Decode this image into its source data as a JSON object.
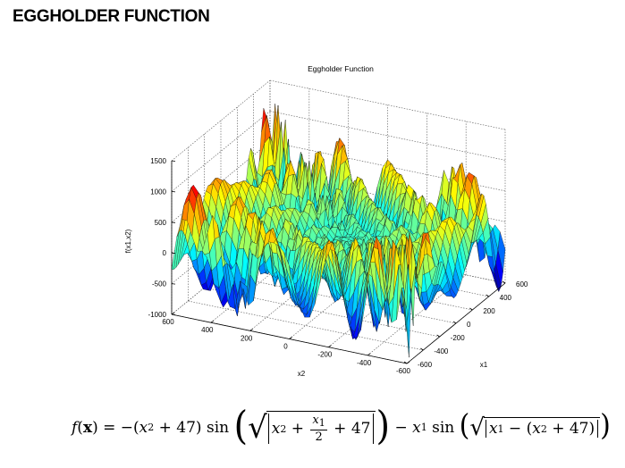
{
  "page": {
    "title": "EGGHOLDER FUNCTION"
  },
  "chart_data": {
    "type": "surface3d",
    "title": "Eggholder Function",
    "xlabel": "x1",
    "ylabel": "x2",
    "zlabel": "f(x1,x2)",
    "xlim": [
      -600,
      600
    ],
    "ylim": [
      -600,
      600
    ],
    "zlim": [
      -1000,
      1500
    ],
    "x_ticks": [
      "-600",
      "-400",
      "-200",
      "0",
      "200",
      "400",
      "600"
    ],
    "y_ticks": [
      "600",
      "400",
      "200",
      "0",
      "-200",
      "-400",
      "-600"
    ],
    "z_ticks": [
      "1500",
      "1000",
      "500",
      "0",
      "-500",
      "-1000"
    ],
    "grid": true,
    "colormap": "jet"
  },
  "formula": {
    "f": "f",
    "x": "x",
    "eq": "= −(",
    "x2a": "x",
    "sub2": "2",
    "plus47a": " + 47) sin ",
    "plus47b": " + 47",
    "x2b": "x",
    "plus": " + ",
    "fracnum": "x",
    "sub1": "1",
    "fracden": "2",
    "minus": " − ",
    "x1a": "x",
    "sin2": " sin ",
    "x1b": "x",
    "minus2": " − (",
    "x2c": "x",
    "plus47c": " + 47)"
  }
}
